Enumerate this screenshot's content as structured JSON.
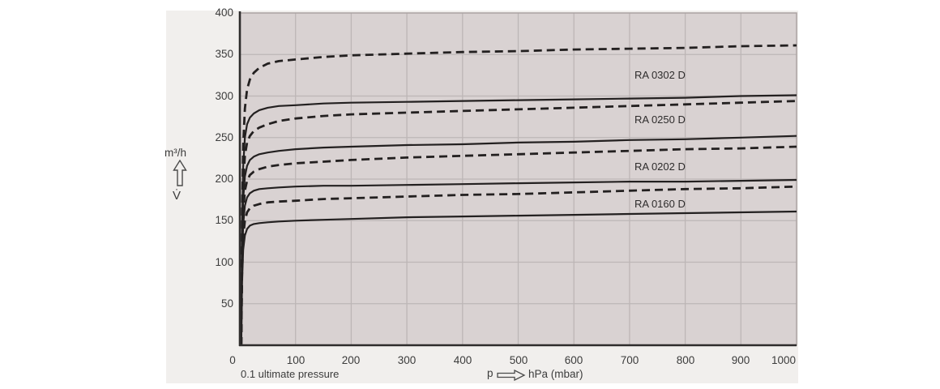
{
  "figure": {
    "y_axis_unit": "m³/h",
    "y_axis_symbol": "V̇",
    "x_axis_symbol": "p",
    "x_axis_unit": "hPa (mbar)",
    "x_axis_note": "0.1 ultimate pressure",
    "colors": {
      "figure_bg": "#f1efed",
      "plot_bg": "#d9d2d2",
      "grid": "#bdb6b6",
      "plot_border": "#aaa2a2",
      "axis": "#2e2c2c",
      "curve": "#232020",
      "text": "#3c3c3c"
    }
  },
  "chart_data": {
    "type": "line",
    "title": "",
    "xlabel": "p → hPa (mbar)",
    "ylabel": "V̇ m³/h",
    "xlim": [
      0,
      1000
    ],
    "ylim": [
      0,
      400
    ],
    "x_ticks": [
      0,
      100,
      200,
      300,
      400,
      500,
      600,
      700,
      800,
      900,
      1000
    ],
    "y_ticks": [
      50,
      100,
      150,
      200,
      250,
      300,
      350,
      400
    ],
    "grid": true,
    "legend_position": "inline-labels",
    "annotations": [
      "0.1 ultimate pressure"
    ],
    "x_samples": [
      2.5,
      4,
      6,
      9,
      13,
      18,
      25,
      35,
      50,
      70,
      100,
      150,
      200,
      300,
      400,
      500,
      600,
      700,
      800,
      900,
      1000
    ],
    "series": [
      {
        "name": "RA 0302 D (dashed)",
        "pump": "RA 0302 D",
        "line_style": "dashed",
        "values": [
          0,
          150,
          240,
          285,
          308,
          320,
          328,
          334,
          339,
          342,
          344,
          347,
          349,
          351,
          353,
          354,
          356,
          357,
          358,
          360,
          361
        ]
      },
      {
        "name": "RA 0302 D (solid)",
        "pump": "RA 0302 D",
        "line_style": "solid",
        "values": [
          0,
          140,
          215,
          250,
          266,
          274,
          279,
          283,
          286,
          288,
          289,
          291,
          292,
          293,
          294,
          295,
          296,
          297,
          298,
          300,
          301
        ]
      },
      {
        "name": "RA 0250 D (dashed)",
        "pump": "RA 0250 D",
        "line_style": "dashed",
        "values": [
          0,
          130,
          195,
          228,
          244,
          252,
          258,
          262,
          266,
          270,
          273,
          276,
          278,
          280,
          282,
          284,
          286,
          288,
          290,
          292,
          294
        ]
      },
      {
        "name": "RA 0250 D (solid)",
        "pump": "RA 0250 D",
        "line_style": "solid",
        "values": [
          0,
          115,
          175,
          203,
          216,
          223,
          227,
          230,
          232,
          234,
          236,
          238,
          239,
          241,
          242,
          244,
          245,
          247,
          248,
          250,
          252
        ]
      },
      {
        "name": "RA 0202 D (dashed)",
        "pump": "RA 0202 D",
        "line_style": "dashed",
        "values": [
          0,
          105,
          160,
          186,
          198,
          205,
          209,
          212,
          215,
          217,
          219,
          221,
          223,
          226,
          228,
          230,
          232,
          234,
          236,
          237,
          239
        ]
      },
      {
        "name": "RA 0202 D (solid)",
        "pump": "RA 0202 D",
        "line_style": "solid",
        "values": [
          0,
          95,
          145,
          168,
          178,
          183,
          186,
          188,
          189,
          190,
          191,
          192,
          192,
          193,
          194,
          195,
          196,
          197,
          197,
          198,
          199
        ]
      },
      {
        "name": "RA 0160 D (dashed)",
        "pump": "RA 0160 D",
        "line_style": "dashed",
        "values": [
          0,
          85,
          130,
          150,
          160,
          165,
          168,
          170,
          172,
          173,
          174,
          176,
          177,
          179,
          181,
          182,
          184,
          186,
          188,
          189,
          191
        ]
      },
      {
        "name": "RA 0160 D (solid)",
        "pump": "RA 0160 D",
        "line_style": "solid",
        "values": [
          0,
          75,
          115,
          132,
          140,
          144,
          146,
          147,
          148,
          149,
          150,
          151,
          152,
          154,
          155,
          156,
          157,
          158,
          159,
          160,
          161
        ]
      }
    ],
    "curve_labels": [
      {
        "text": "RA 0302 D",
        "x": 709,
        "value": 326
      },
      {
        "text": "RA 0250 D",
        "x": 709,
        "value": 272
      },
      {
        "text": "RA 0202 D",
        "x": 709,
        "value": 216
      },
      {
        "text": "RA 0160 D",
        "x": 709,
        "value": 171
      }
    ]
  }
}
